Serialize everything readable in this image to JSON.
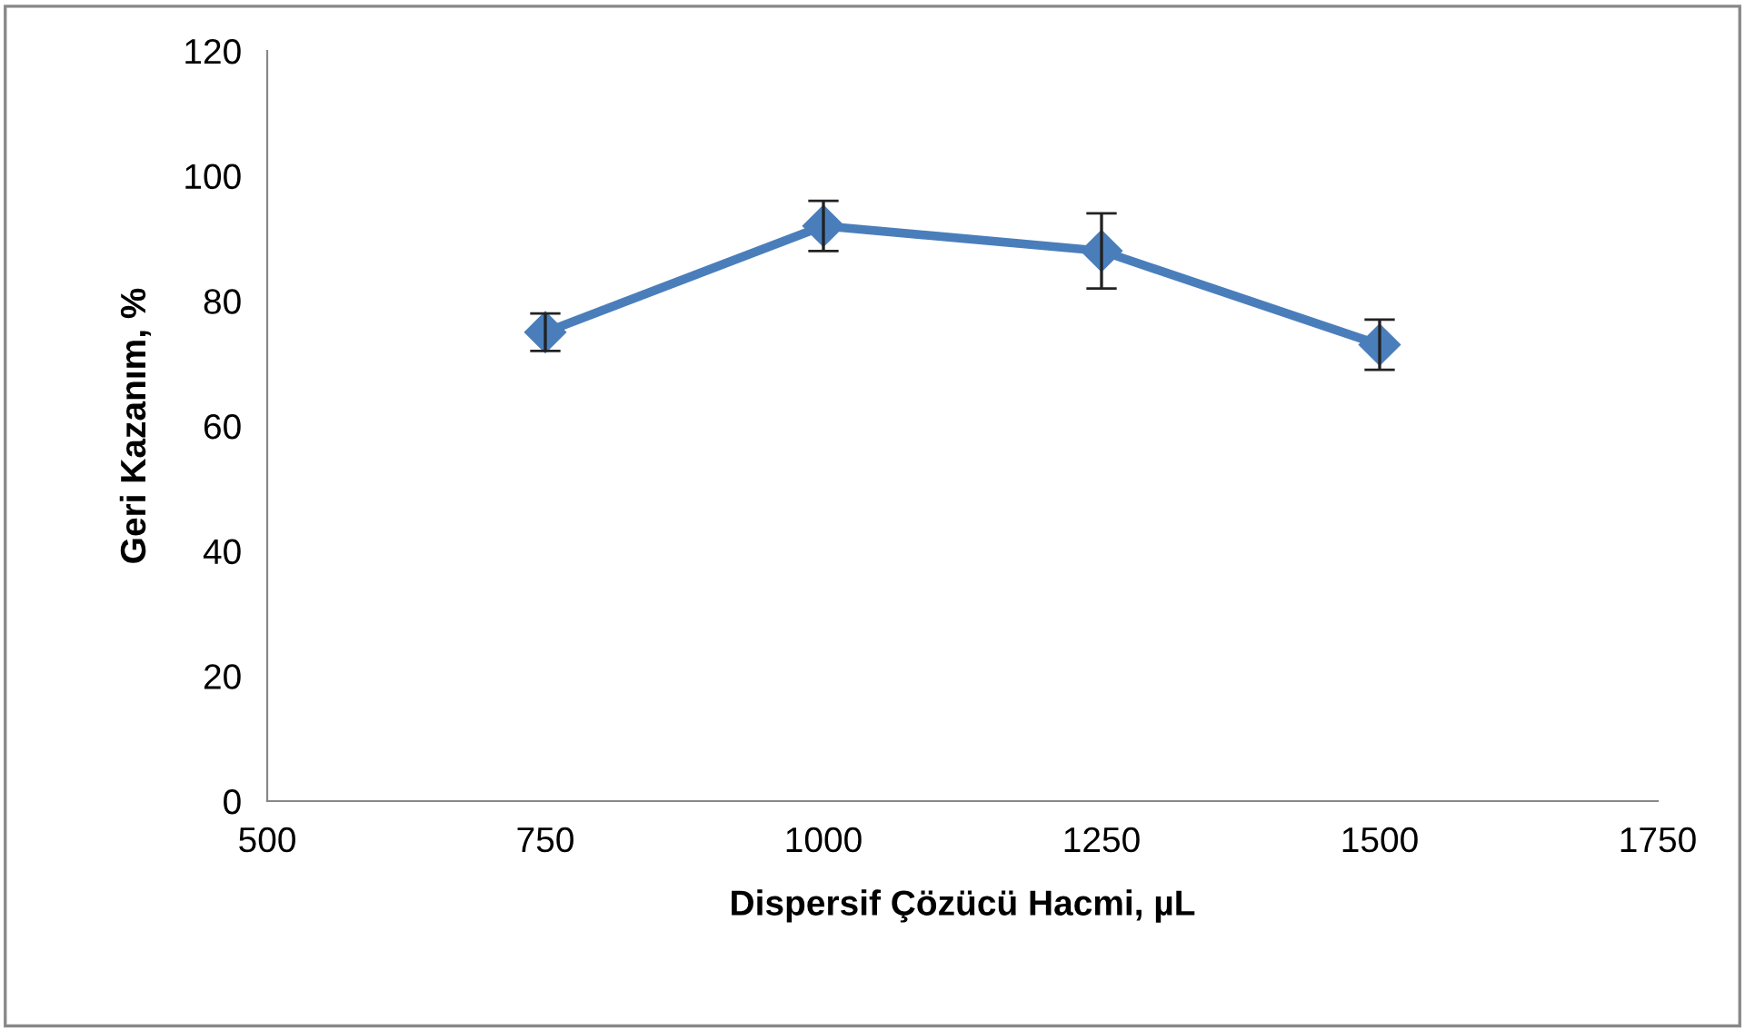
{
  "chart_data": {
    "type": "line",
    "xlabel": "Dispersif Çözücü Hacmi, µL",
    "ylabel": "Geri Kazanım, %",
    "x": [
      750,
      1000,
      1250,
      1500
    ],
    "series": [
      {
        "color": "#4a7ebb",
        "values": [
          75,
          92,
          88,
          73
        ],
        "errors": [
          3,
          4,
          6,
          4
        ]
      }
    ],
    "xlim": [
      500,
      1750
    ],
    "xticks": [
      500,
      750,
      1000,
      1250,
      1500,
      1750
    ],
    "ylim": [
      0,
      120
    ],
    "yticks": [
      0,
      20,
      40,
      60,
      80,
      100,
      120
    ],
    "marker": "diamond",
    "line_style": "solid",
    "grid": false,
    "legend": false
  }
}
